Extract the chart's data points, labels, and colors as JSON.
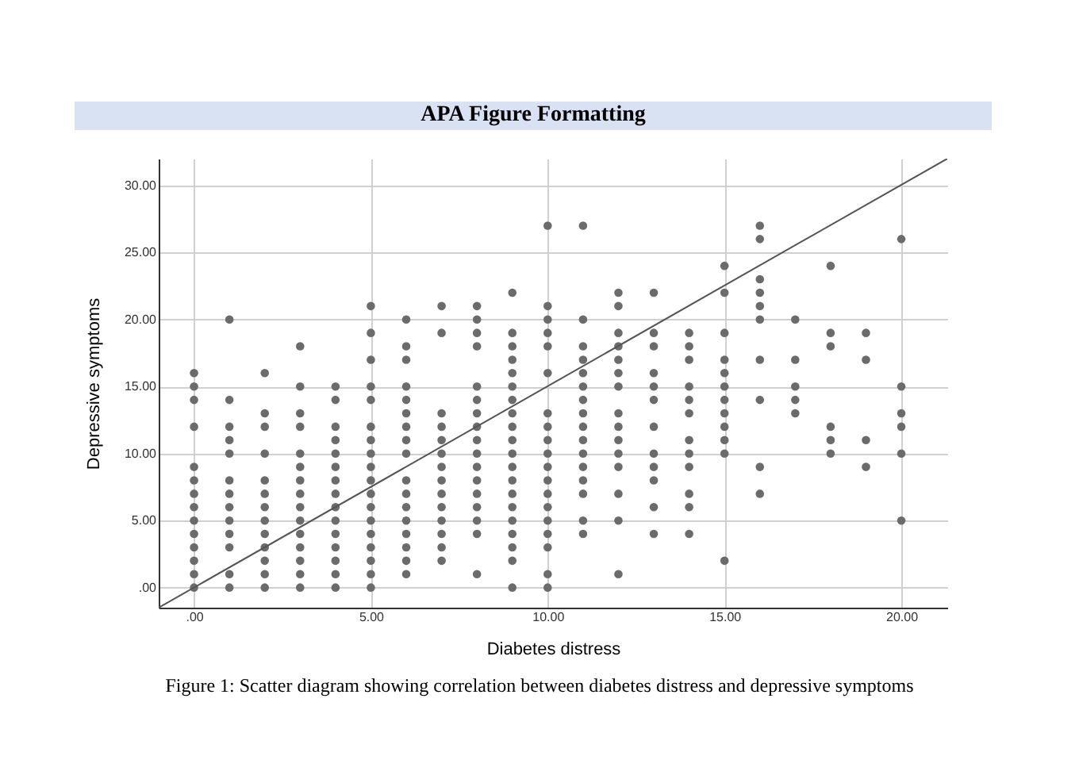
{
  "chart_data": {
    "type": "scatter",
    "title": "APA Figure Formatting",
    "xlabel": "Diabetes distress",
    "ylabel": "Depressive symptoms",
    "annotations": [
      "Figure 1: Scatter diagram showing correlation between diabetes distress and depressive symptoms"
    ],
    "xlim": [
      -1,
      21.3
    ],
    "ylim": [
      -1.5,
      32
    ],
    "xticks": [
      {
        "value": 0,
        "label": ".00"
      },
      {
        "value": 5,
        "label": "5.00"
      },
      {
        "value": 10,
        "label": "10.00"
      },
      {
        "value": 15,
        "label": "15.00"
      },
      {
        "value": 20,
        "label": "20.00"
      }
    ],
    "yticks": [
      {
        "value": 0,
        "label": ".00"
      },
      {
        "value": 5,
        "label": "5.00"
      },
      {
        "value": 10,
        "label": "10.00"
      },
      {
        "value": 15,
        "label": "15.00"
      },
      {
        "value": 20,
        "label": "20.00"
      },
      {
        "value": 25,
        "label": "25.00"
      },
      {
        "value": 30,
        "label": "30.00"
      }
    ],
    "grid": true,
    "series": [
      {
        "marker": "circle",
        "color": "#6b6b6b",
        "x": [
          0,
          0,
          0,
          0,
          0,
          0,
          0,
          0,
          0,
          0,
          0,
          0,
          0,
          0,
          1,
          1,
          1,
          1,
          1,
          1,
          1,
          1,
          1,
          1,
          1,
          1,
          1,
          2,
          2,
          2,
          2,
          2,
          2,
          2,
          2,
          2,
          2,
          2,
          2,
          2,
          3,
          3,
          3,
          3,
          3,
          3,
          3,
          3,
          3,
          3,
          3,
          3,
          3,
          3,
          3,
          4,
          4,
          4,
          4,
          4,
          4,
          4,
          4,
          4,
          4,
          4,
          4,
          4,
          4,
          4,
          5,
          5,
          5,
          5,
          5,
          5,
          5,
          5,
          5,
          5,
          5,
          5,
          5,
          5,
          5,
          5,
          5,
          5,
          6,
          6,
          6,
          6,
          6,
          6,
          6,
          6,
          6,
          6,
          6,
          6,
          6,
          6,
          6,
          6,
          6,
          7,
          7,
          7,
          7,
          7,
          7,
          7,
          7,
          7,
          7,
          7,
          7,
          7,
          7,
          8,
          8,
          8,
          8,
          8,
          8,
          8,
          8,
          8,
          8,
          8,
          8,
          8,
          8,
          8,
          8,
          8,
          9,
          9,
          9,
          9,
          9,
          9,
          9,
          9,
          9,
          9,
          9,
          9,
          9,
          9,
          9,
          9,
          9,
          9,
          9,
          9,
          10,
          10,
          10,
          10,
          10,
          10,
          10,
          10,
          10,
          10,
          10,
          10,
          10,
          10,
          10,
          10,
          10,
          10,
          10,
          11,
          11,
          11,
          11,
          11,
          11,
          11,
          11,
          11,
          11,
          11,
          11,
          11,
          11,
          11,
          11,
          12,
          12,
          12,
          12,
          12,
          12,
          12,
          12,
          12,
          12,
          12,
          12,
          12,
          12,
          12,
          13,
          13,
          13,
          13,
          13,
          13,
          13,
          13,
          13,
          13,
          13,
          13,
          14,
          14,
          14,
          14,
          14,
          14,
          14,
          14,
          14,
          14,
          14,
          14,
          15,
          15,
          15,
          15,
          15,
          15,
          15,
          15,
          15,
          15,
          15,
          15,
          16,
          16,
          16,
          16,
          16,
          16,
          16,
          16,
          16,
          16,
          17,
          17,
          17,
          17,
          17,
          18,
          18,
          18,
          18,
          18,
          18,
          19,
          19,
          19,
          19,
          20,
          20,
          20,
          20,
          20,
          20
        ],
        "values": [
          16,
          15,
          14,
          12,
          9,
          8,
          7,
          6,
          5,
          4,
          3,
          2,
          1,
          0,
          20,
          14,
          12,
          11,
          10,
          8,
          7,
          6,
          5,
          4,
          3,
          1,
          0,
          16,
          13,
          12,
          10,
          8,
          7,
          6,
          5,
          4,
          3,
          2,
          1,
          0,
          18,
          15,
          13,
          12,
          10,
          9,
          8,
          7,
          6,
          5,
          4,
          3,
          2,
          1,
          0,
          15,
          14,
          12,
          11,
          10,
          9,
          8,
          7,
          6,
          5,
          4,
          3,
          2,
          1,
          0,
          21,
          19,
          17,
          15,
          14,
          12,
          11,
          10,
          9,
          8,
          7,
          6,
          5,
          4,
          3,
          2,
          1,
          0,
          20,
          18,
          17,
          15,
          14,
          13,
          12,
          11,
          10,
          8,
          7,
          6,
          5,
          4,
          3,
          2,
          1,
          21,
          19,
          13,
          12,
          11,
          10,
          9,
          8,
          7,
          6,
          5,
          4,
          3,
          2,
          21,
          20,
          19,
          18,
          15,
          14,
          13,
          12,
          11,
          10,
          9,
          8,
          7,
          6,
          5,
          4,
          1,
          22,
          19,
          18,
          17,
          16,
          15,
          14,
          13,
          12,
          11,
          10,
          9,
          8,
          7,
          6,
          5,
          4,
          3,
          2,
          0,
          27,
          21,
          20,
          19,
          18,
          16,
          13,
          12,
          11,
          10,
          9,
          8,
          7,
          6,
          5,
          4,
          3,
          1,
          0,
          27,
          20,
          18,
          17,
          16,
          15,
          14,
          13,
          12,
          11,
          10,
          9,
          8,
          7,
          5,
          4,
          22,
          21,
          19,
          18,
          17,
          16,
          15,
          13,
          12,
          11,
          10,
          9,
          7,
          5,
          1,
          22,
          19,
          18,
          16,
          15,
          14,
          12,
          10,
          9,
          8,
          6,
          4,
          19,
          18,
          17,
          15,
          14,
          13,
          11,
          10,
          9,
          7,
          6,
          4,
          24,
          22,
          19,
          17,
          16,
          15,
          14,
          13,
          12,
          11,
          10,
          2,
          27,
          26,
          23,
          22,
          21,
          20,
          17,
          14,
          9,
          7,
          20,
          17,
          15,
          14,
          13,
          24,
          19,
          18,
          12,
          11,
          10,
          19,
          17,
          11,
          9,
          26,
          15,
          13,
          12,
          10,
          5
        ]
      },
      {
        "type": "line",
        "color": "#555555",
        "x": [
          -1,
          21.3
        ],
        "values": [
          -1.5,
          32
        ]
      }
    ]
  }
}
